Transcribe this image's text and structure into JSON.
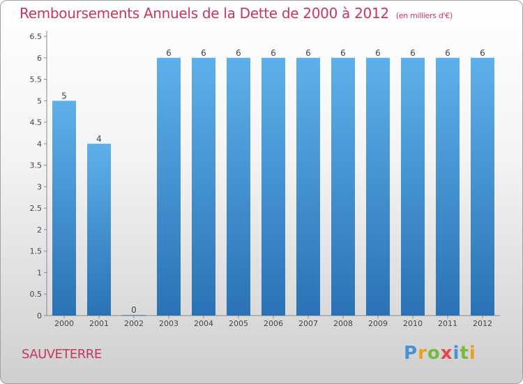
{
  "header": {
    "title": "Remboursements Annuels de la Dette de 2000 à 2012",
    "unit": "(en milliers d'€)"
  },
  "commune": "SAUVETERRE",
  "logo": {
    "text": "Proxiti",
    "colors": [
      "#4a90d9",
      "#e8a020",
      "#7ab83a",
      "#e24a4a",
      "#4a90d9",
      "#7ab83a",
      "#e8a020"
    ]
  },
  "chart_data": {
    "type": "bar",
    "categories": [
      "2000",
      "2001",
      "2002",
      "2003",
      "2004",
      "2005",
      "2006",
      "2007",
      "2008",
      "2009",
      "2010",
      "2011",
      "2012"
    ],
    "values": [
      5,
      4,
      0,
      6,
      6,
      6,
      6,
      6,
      6,
      6,
      6,
      6,
      6
    ],
    "value_labels": [
      "5",
      "4",
      "0",
      "6",
      "6",
      "6",
      "6",
      "6",
      "6",
      "6",
      "6",
      "6",
      "6"
    ],
    "ylim": [
      0,
      6.5
    ],
    "yticks": [
      0,
      0.5,
      1,
      1.5,
      2,
      2.5,
      3,
      3.5,
      4,
      4.5,
      5,
      5.5,
      6,
      6.5
    ],
    "ytick_labels": [
      "0",
      "0.5",
      "1",
      "1.5",
      "2",
      "2.5",
      "3",
      "3.5",
      "4",
      "4.5",
      "5",
      "5.5",
      "6",
      "6.5"
    ],
    "grid": false,
    "bar_colors": {
      "top": "#5eb0ea",
      "bottom": "#2a72b5"
    },
    "text_color": "#444444"
  }
}
